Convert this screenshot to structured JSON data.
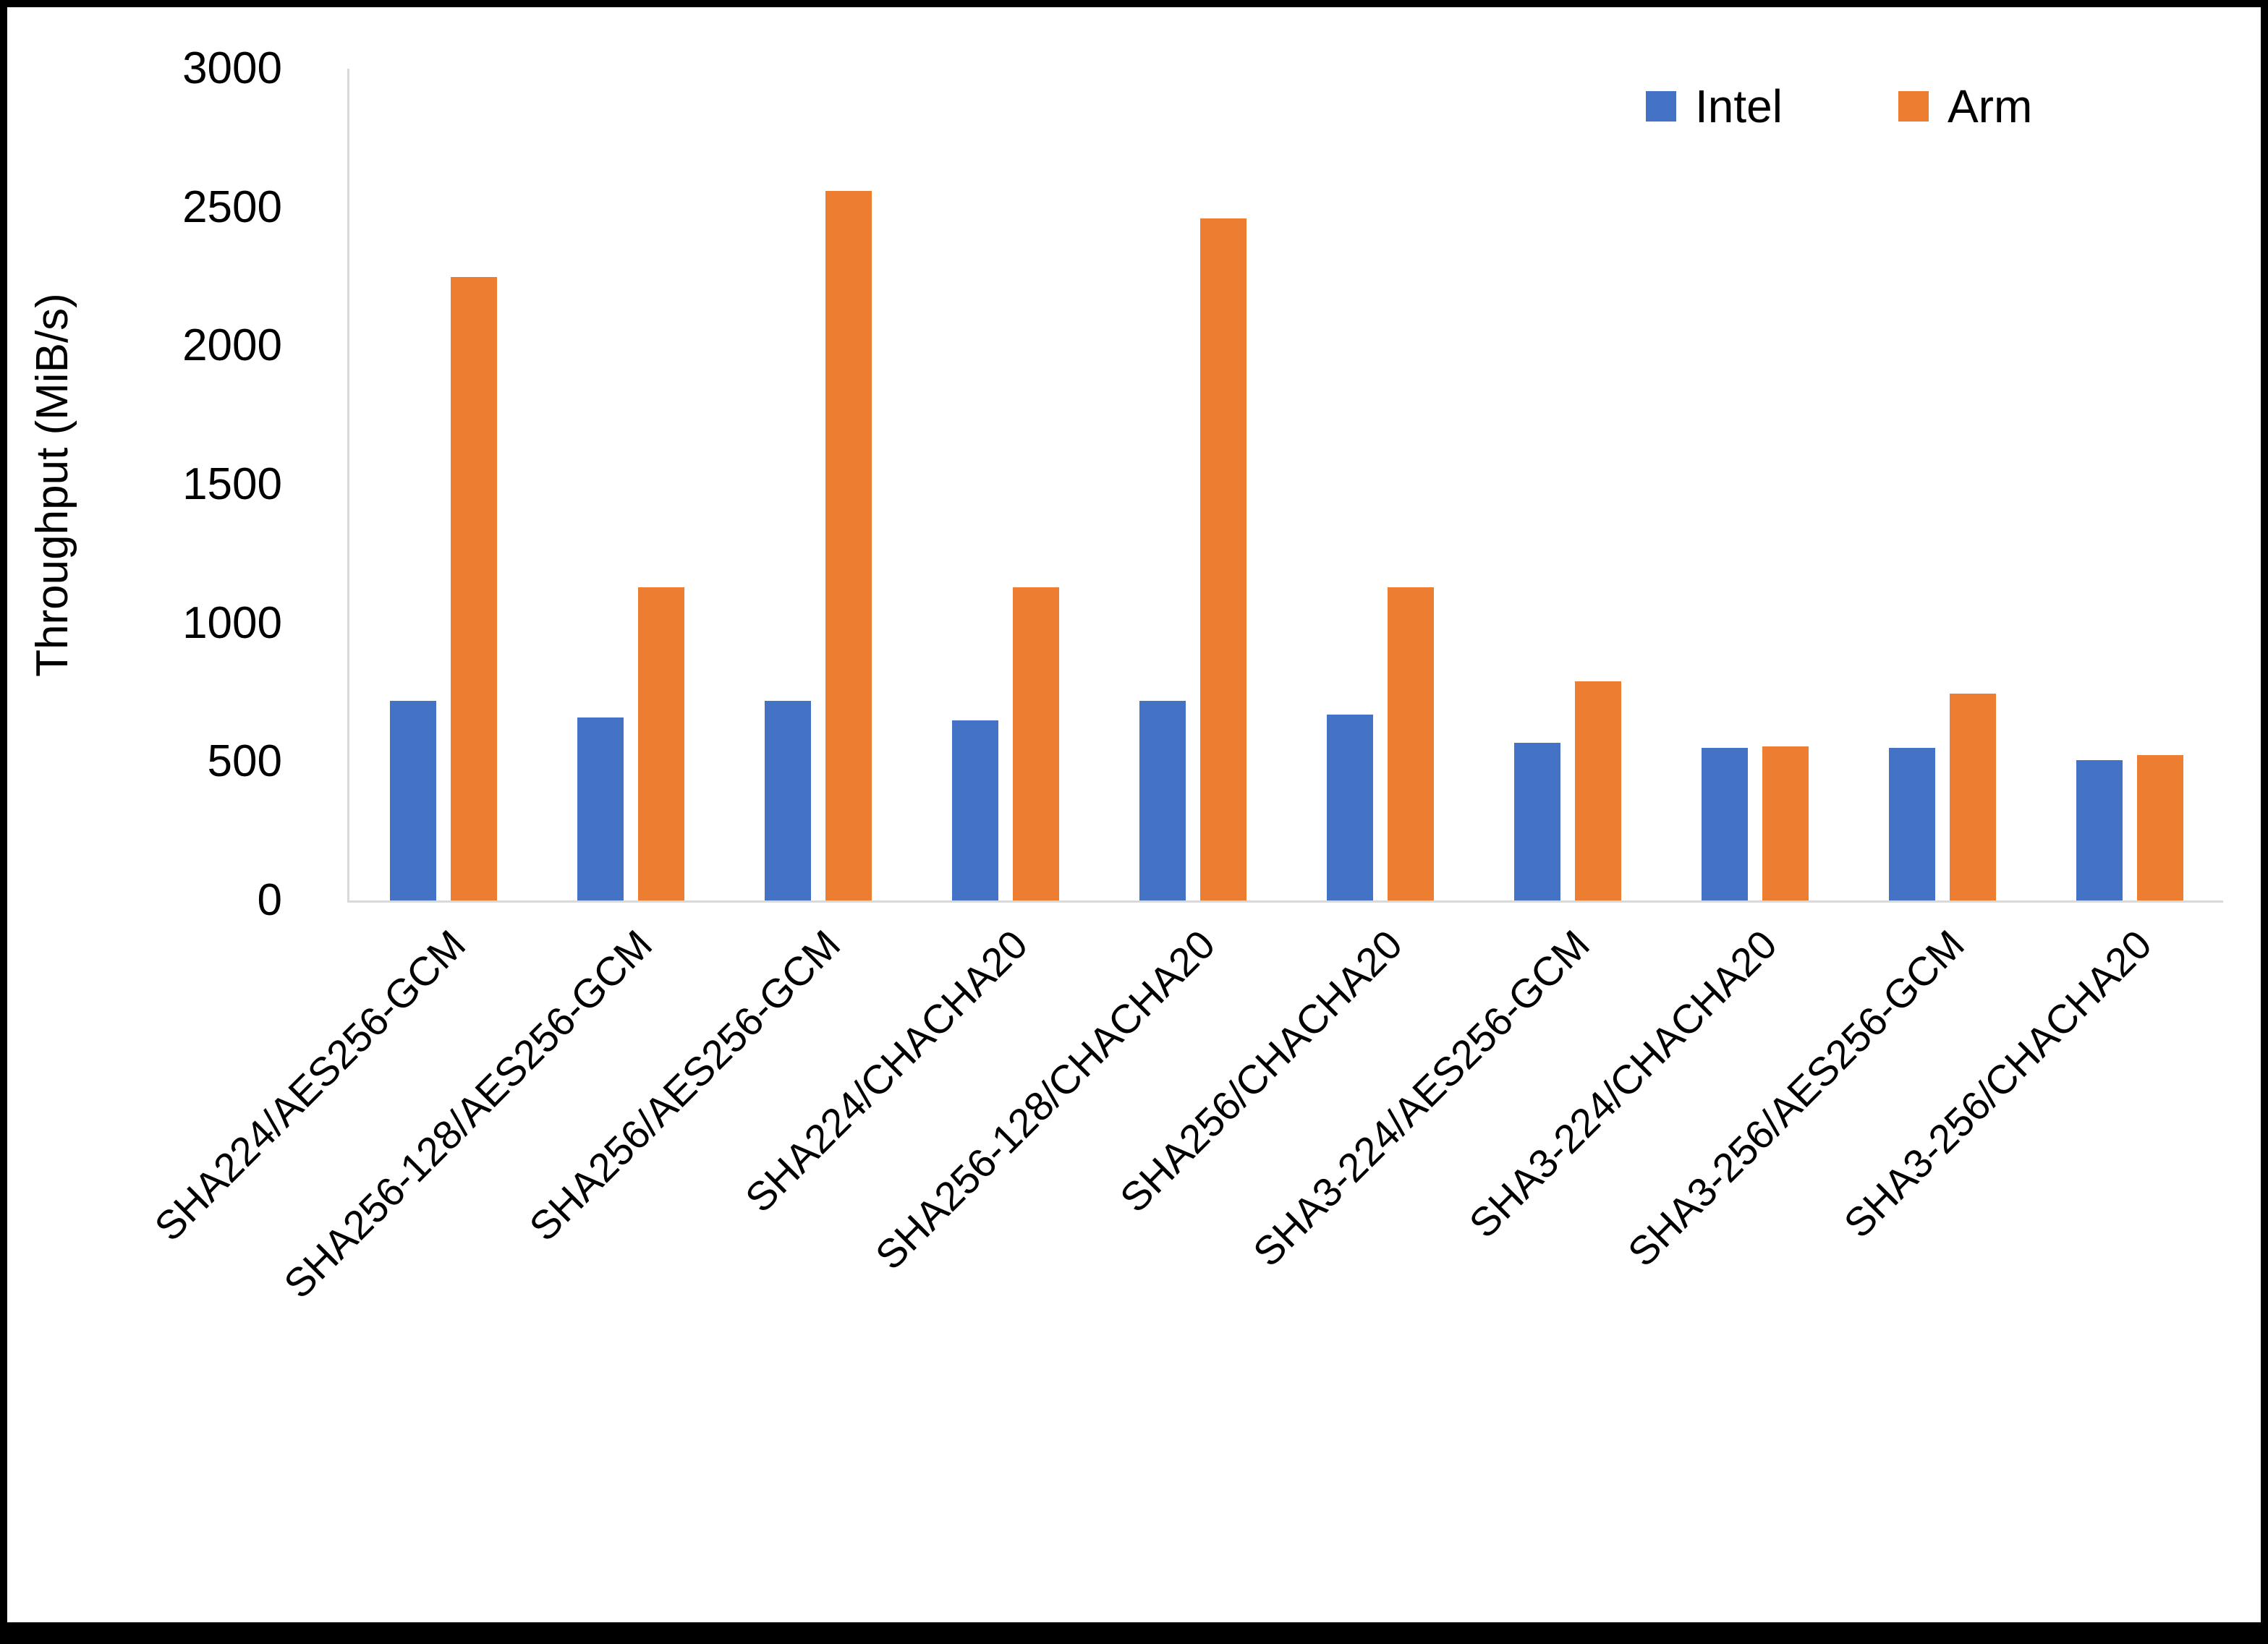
{
  "chart_data": {
    "type": "bar",
    "title": "",
    "ylabel": "Throughput (MiB/s)",
    "xlabel": "",
    "ylim": [
      0,
      3000
    ],
    "ytick_step": 500,
    "grid": false,
    "legend_position": "top-right",
    "categories": [
      "SHA224/AES256-GCM",
      "SHA256-128/AES256-GCM",
      "SHA256/AES256-GCM",
      "SHA224/CHACHA20",
      "SHA256-128/CHACHA20",
      "SHA256/CHACHA20",
      "SHA3-224/AES256-GCM",
      "SHA3-224/CHACHA20",
      "SHA3-256/AES256-GCM",
      "SHA3-256/CHACHA20"
    ],
    "series": [
      {
        "name": "Intel",
        "color": "#4472C4",
        "values": [
          720,
          660,
          720,
          650,
          720,
          670,
          570,
          550,
          550,
          505
        ]
      },
      {
        "name": "Arm",
        "color": "#ED7D31",
        "values": [
          2250,
          1130,
          2560,
          1130,
          2460,
          1130,
          790,
          555,
          745,
          525
        ]
      }
    ]
  }
}
